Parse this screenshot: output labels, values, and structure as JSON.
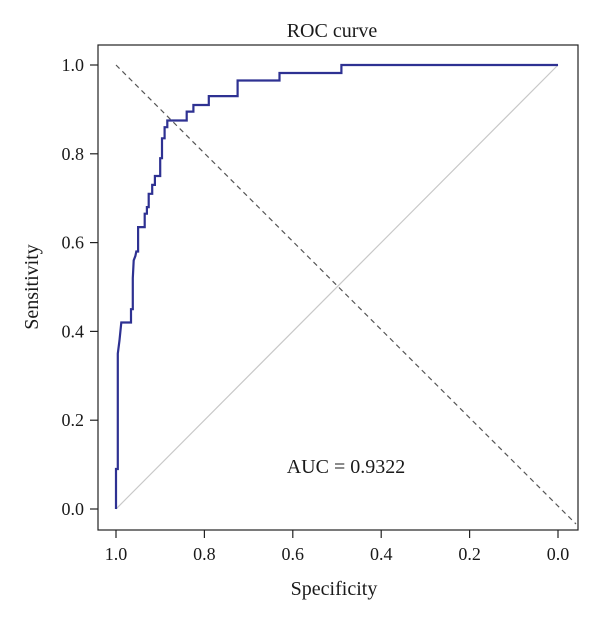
{
  "chart_data": {
    "type": "line",
    "title": "ROC curve",
    "xlabel": "Specificity",
    "ylabel": "Sensitivity",
    "xlim": [
      1.0,
      0.0
    ],
    "ylim": [
      0.0,
      1.0
    ],
    "x_reversed": true,
    "xticks": [
      1.0,
      0.8,
      0.6,
      0.4,
      0.2,
      0.0
    ],
    "xtick_labels": [
      "1.0",
      "0.8",
      "0.6",
      "0.4",
      "0.2",
      "0.0"
    ],
    "yticks": [
      0.0,
      0.2,
      0.4,
      0.6,
      0.8,
      1.0
    ],
    "ytick_labels": [
      "0.0",
      "0.2",
      "0.4",
      "0.6",
      "0.8",
      "1.0"
    ],
    "grid": false,
    "annotation": "AUC = 0.9322",
    "colors": {
      "curve": "#2e3192",
      "diagonal": "#c8c8c8",
      "dashed": "#555555",
      "axis": "#222222"
    },
    "series": [
      {
        "values": [
          {
            "x": 1.0,
            "y": 0.0
          },
          {
            "x": 1.0,
            "y": 0.09
          },
          {
            "x": 0.996,
            "y": 0.09
          },
          {
            "x": 0.996,
            "y": 0.35
          },
          {
            "x": 0.992,
            "y": 0.38
          },
          {
            "x": 0.99,
            "y": 0.4
          },
          {
            "x": 0.988,
            "y": 0.42
          },
          {
            "x": 0.966,
            "y": 0.42
          },
          {
            "x": 0.966,
            "y": 0.45
          },
          {
            "x": 0.962,
            "y": 0.45
          },
          {
            "x": 0.962,
            "y": 0.52
          },
          {
            "x": 0.96,
            "y": 0.56
          },
          {
            "x": 0.956,
            "y": 0.57
          },
          {
            "x": 0.954,
            "y": 0.58
          },
          {
            "x": 0.95,
            "y": 0.58
          },
          {
            "x": 0.95,
            "y": 0.635
          },
          {
            "x": 0.935,
            "y": 0.635
          },
          {
            "x": 0.935,
            "y": 0.665
          },
          {
            "x": 0.93,
            "y": 0.665
          },
          {
            "x": 0.93,
            "y": 0.68
          },
          {
            "x": 0.926,
            "y": 0.68
          },
          {
            "x": 0.926,
            "y": 0.71
          },
          {
            "x": 0.918,
            "y": 0.71
          },
          {
            "x": 0.918,
            "y": 0.73
          },
          {
            "x": 0.912,
            "y": 0.73
          },
          {
            "x": 0.912,
            "y": 0.75
          },
          {
            "x": 0.9,
            "y": 0.75
          },
          {
            "x": 0.9,
            "y": 0.79
          },
          {
            "x": 0.896,
            "y": 0.79
          },
          {
            "x": 0.896,
            "y": 0.835
          },
          {
            "x": 0.89,
            "y": 0.835
          },
          {
            "x": 0.89,
            "y": 0.86
          },
          {
            "x": 0.884,
            "y": 0.86
          },
          {
            "x": 0.884,
            "y": 0.875
          },
          {
            "x": 0.84,
            "y": 0.875
          },
          {
            "x": 0.84,
            "y": 0.895
          },
          {
            "x": 0.825,
            "y": 0.895
          },
          {
            "x": 0.825,
            "y": 0.91
          },
          {
            "x": 0.79,
            "y": 0.91
          },
          {
            "x": 0.79,
            "y": 0.93
          },
          {
            "x": 0.725,
            "y": 0.93
          },
          {
            "x": 0.725,
            "y": 0.965
          },
          {
            "x": 0.63,
            "y": 0.965
          },
          {
            "x": 0.63,
            "y": 0.982
          },
          {
            "x": 0.49,
            "y": 0.982
          },
          {
            "x": 0.49,
            "y": 1.0
          },
          {
            "x": 0.0,
            "y": 1.0
          }
        ]
      }
    ]
  }
}
